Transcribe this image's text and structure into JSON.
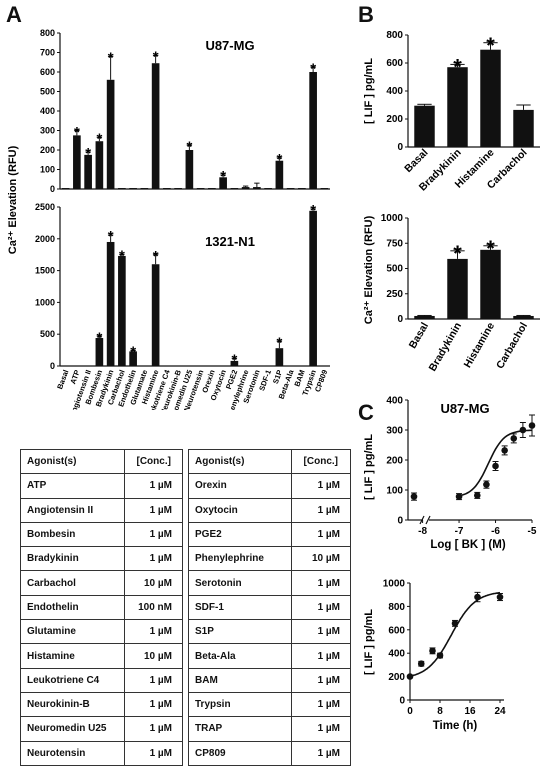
{
  "panels": {
    "a": "A",
    "b": "B",
    "c": "C"
  },
  "chart_data": [
    {
      "id": "A-top",
      "type": "bar",
      "title": "U87-MG",
      "ylim": [
        0,
        800
      ],
      "yticks": [
        0,
        100,
        200,
        300,
        400,
        500,
        600,
        700,
        800
      ],
      "categories": [
        "Basal",
        "ATP",
        "Angiotensin II",
        "Bombesin",
        "Bradykinin",
        "Carbachol",
        "Endothelin",
        "Glutamate",
        "Histamine",
        "Leukotriene C4",
        "Neurokinin-B",
        "Neuromedin U25",
        "Neurotensin",
        "Orexin",
        "Oxytocin",
        "PGE2",
        "Phenylephrine",
        "Serotonin",
        "SDF-1",
        "S1P",
        "Beta-Ala",
        "BAM",
        "Trypsin",
        "CP809"
      ],
      "values": [
        5,
        275,
        175,
        245,
        560,
        5,
        5,
        5,
        645,
        5,
        5,
        200,
        5,
        5,
        60,
        5,
        10,
        10,
        5,
        145,
        5,
        5,
        600,
        5
      ],
      "errors": [
        0,
        25,
        15,
        20,
        120,
        0,
        0,
        0,
        40,
        0,
        0,
        25,
        0,
        0,
        12,
        0,
        5,
        20,
        0,
        15,
        0,
        0,
        25,
        0
      ],
      "sig": [
        false,
        true,
        true,
        true,
        true,
        false,
        false,
        false,
        true,
        false,
        false,
        true,
        false,
        false,
        true,
        false,
        false,
        false,
        false,
        true,
        false,
        false,
        true,
        false
      ]
    },
    {
      "id": "A-bottom",
      "type": "bar",
      "title": "1321-N1",
      "ylim": [
        0,
        2500
      ],
      "yticks": [
        0,
        500,
        1000,
        1500,
        2000,
        2500
      ],
      "categories": [
        "Basal",
        "ATP",
        "Angiotensin II",
        "Bombesin",
        "Bradykinin",
        "Carbachol",
        "Endothelin",
        "Glutamate",
        "Histamine",
        "Leukotriene C4",
        "Neurokinin-B",
        "Neuromedin U25",
        "Neurotensin",
        "Orexin",
        "Oxytocin",
        "PGE2",
        "Phenylephrine",
        "Serotonin",
        "SDF-1",
        "S1P",
        "Beta-Ala",
        "BAM",
        "Trypsin",
        "CP809"
      ],
      "values": [
        5,
        5,
        5,
        440,
        1950,
        1730,
        230,
        5,
        1600,
        5,
        5,
        5,
        5,
        5,
        5,
        80,
        5,
        5,
        5,
        280,
        5,
        5,
        2440,
        5
      ],
      "errors": [
        0,
        0,
        0,
        30,
        110,
        25,
        15,
        0,
        150,
        0,
        0,
        0,
        0,
        0,
        0,
        40,
        0,
        0,
        0,
        110,
        0,
        0,
        30,
        0
      ],
      "sig": [
        false,
        false,
        false,
        true,
        true,
        true,
        true,
        false,
        true,
        false,
        false,
        false,
        false,
        false,
        false,
        true,
        false,
        false,
        false,
        true,
        false,
        false,
        true,
        false
      ],
      "ylabel": "Ca²⁺ Elevation (RFU)"
    },
    {
      "id": "B-top",
      "type": "bar",
      "ylabel": "[ LIF ] pg/mL",
      "ylim": [
        0,
        800
      ],
      "yticks": [
        0,
        200,
        400,
        600,
        800
      ],
      "categories": [
        "Basal",
        "Bradykinin",
        "Histamine",
        "Carbachol"
      ],
      "values": [
        295,
        570,
        695,
        265
      ],
      "errors": [
        10,
        20,
        50,
        35
      ],
      "sig": [
        false,
        true,
        true,
        false
      ]
    },
    {
      "id": "B-bottom",
      "type": "bar",
      "ylabel": "Ca²⁺ Elevation (RFU)",
      "ylim": [
        0,
        1000
      ],
      "yticks": [
        0,
        250,
        500,
        750,
        1000
      ],
      "categories": [
        "Basal",
        "Bradykinin",
        "Histamine",
        "Carbachol"
      ],
      "values": [
        30,
        595,
        685,
        30
      ],
      "errors": [
        5,
        80,
        40,
        5
      ],
      "sig": [
        false,
        true,
        true,
        false
      ]
    },
    {
      "id": "C-top",
      "type": "scatter",
      "title": "U87-MG",
      "xlabel": "Log [ BK ] (M)",
      "ylabel": "[ LIF ] pg/mL",
      "xlim": [
        -8.4,
        -5
      ],
      "ylim": [
        0,
        400
      ],
      "xticks": [
        -8,
        -7,
        -6,
        -5
      ],
      "yticks": [
        0,
        100,
        200,
        300,
        400
      ],
      "basal": {
        "y": 78,
        "err": 12
      },
      "x": [
        -7,
        -6.5,
        -6.25,
        -6,
        -5.75,
        -5.5,
        -5.25,
        -5
      ],
      "y": [
        78,
        82,
        118,
        180,
        232,
        272,
        300,
        315
      ],
      "errors": [
        10,
        10,
        12,
        15,
        15,
        15,
        25,
        35
      ],
      "fit": {
        "bottom": 75,
        "top": 300,
        "logec50": -6.2,
        "hill": 2.0
      }
    },
    {
      "id": "C-bottom",
      "type": "scatter",
      "xlabel": "Time (h)",
      "ylabel": "[ LIF ] pg/mL",
      "xlim": [
        0,
        24
      ],
      "ylim": [
        0,
        1000
      ],
      "xticks": [
        0,
        8,
        16,
        24
      ],
      "yticks": [
        0,
        200,
        400,
        600,
        800,
        1000
      ],
      "x": [
        0,
        3,
        6,
        8,
        12,
        18,
        24
      ],
      "y": [
        200,
        310,
        420,
        380,
        655,
        880,
        880
      ],
      "errors": [
        10,
        20,
        25,
        20,
        25,
        40,
        30
      ],
      "fit": {
        "bottom": 180,
        "top": 930,
        "t50": 11,
        "k": 3.2
      }
    }
  ],
  "table_left": {
    "header": [
      "Agonist(s)",
      "[Conc.]"
    ],
    "rows": [
      [
        "ATP",
        "1 µM"
      ],
      [
        "Angiotensin II",
        "1 µM"
      ],
      [
        "Bombesin",
        "1 µM"
      ],
      [
        "Bradykinin",
        "1 µM"
      ],
      [
        "Carbachol",
        "10 µM"
      ],
      [
        "Endothelin",
        "100 nM"
      ],
      [
        "Glutamine",
        "1 µM"
      ],
      [
        "Histamine",
        "10 µM"
      ],
      [
        "Leukotriene C4",
        "1 µM"
      ],
      [
        "Neurokinin-B",
        "1 µM"
      ],
      [
        "Neuromedin U25",
        "1 µM"
      ],
      [
        "Neurotensin",
        "1 µM"
      ]
    ]
  },
  "table_right": {
    "header": [
      "Agonist(s)",
      "[Conc.]"
    ],
    "rows": [
      [
        "Orexin",
        "1 µM"
      ],
      [
        "Oxytocin",
        "1 µM"
      ],
      [
        "PGE2",
        "1 µM"
      ],
      [
        "Phenylephrine",
        "10 µM"
      ],
      [
        "Serotonin",
        "1 µM"
      ],
      [
        "SDF-1",
        "1 µM"
      ],
      [
        "S1P",
        "1 µM"
      ],
      [
        "Beta-Ala",
        "1 µM"
      ],
      [
        "BAM",
        "1 µM"
      ],
      [
        "Trypsin",
        "1 µM"
      ],
      [
        "TRAP",
        "1 µM"
      ],
      [
        "CP809",
        "1 µM"
      ]
    ]
  },
  "sig_mark": "*",
  "colors": {
    "bar": "#111111",
    "curve": "#111111"
  }
}
